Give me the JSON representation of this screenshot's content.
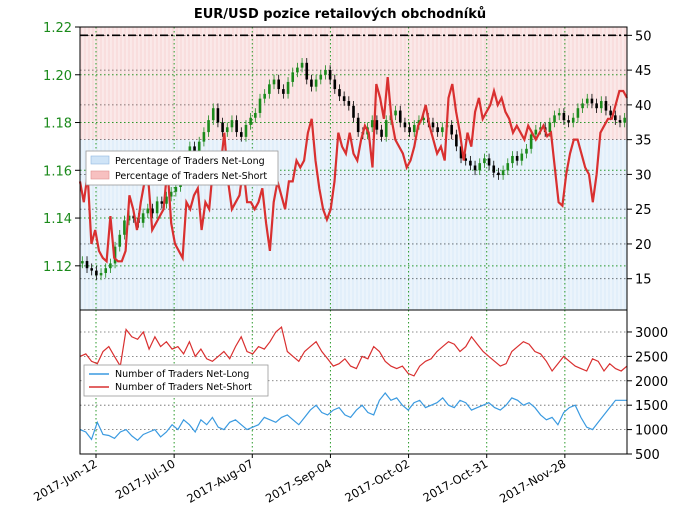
{
  "chart_data": [
    {
      "type": "line",
      "title": "EUR/USD pozice retailových obchodníků",
      "price_axis": {
        "ticks": [
          "1.12",
          "1.14",
          "1.16",
          "1.18",
          "1.20",
          "1.22"
        ],
        "color": "#1b8a1b"
      },
      "pct_axis": {
        "ticks": [
          "15",
          "20",
          "25",
          "30",
          "35",
          "40",
          "45",
          "50"
        ]
      },
      "x_ticks": [
        "2017-Jun-12",
        "2017-Jul-10",
        "2017-Aug-07",
        "2017-Sep-04",
        "2017-Oct-02",
        "2017-Oct-31",
        "2017-Nov-28"
      ],
      "legend": [
        "Percentage of Traders Net-Long",
        "Percentage of Traders Net-Short"
      ],
      "colors": {
        "net_long": "#cfe4f7",
        "net_short": "#f7d0d0",
        "line": "#d93030",
        "candle_up": "#1b8a1b",
        "candle_down": "#000000"
      },
      "series": [
        {
          "name": "Percentage of Traders Net-Short",
          "values": [
            29,
            26,
            30,
            20,
            22,
            19,
            18,
            17.5,
            24,
            18,
            17.5,
            17.5,
            19,
            27,
            25,
            22,
            26,
            29,
            29,
            22,
            23,
            24,
            25,
            31,
            23,
            20,
            19,
            18,
            26,
            25,
            27,
            28,
            22,
            26,
            25,
            31,
            31,
            31,
            36,
            29,
            25,
            26,
            27,
            31,
            26,
            26,
            25,
            26,
            28,
            23,
            19,
            26,
            29,
            27,
            25,
            29,
            29,
            32,
            31,
            32,
            36,
            38,
            32,
            28,
            25,
            23.5,
            25,
            29,
            36,
            34,
            33,
            36,
            33,
            32,
            35,
            37,
            36,
            31,
            43,
            41,
            38,
            44,
            38,
            35,
            34,
            33,
            31,
            32,
            34,
            37,
            38,
            40,
            37,
            35,
            33,
            34,
            32,
            41,
            43,
            39,
            36,
            32,
            36,
            34,
            39,
            41,
            38,
            39,
            40,
            42,
            40,
            41,
            39,
            38,
            36,
            37,
            36,
            35,
            37,
            36,
            35,
            36,
            37,
            35.5,
            36,
            31,
            26,
            25.5,
            30,
            33,
            35,
            35,
            33,
            31,
            30,
            26,
            30,
            36,
            37,
            38,
            38,
            40,
            42,
            42,
            41
          ]
        },
        {
          "name": "EUR/USD",
          "values": [
            1.122,
            1.119,
            1.118,
            1.116,
            1.117,
            1.119,
            1.121,
            1.128,
            1.133,
            1.139,
            1.141,
            1.14,
            1.138,
            1.142,
            1.144,
            1.142,
            1.147,
            1.146,
            1.149,
            1.151,
            1.153,
            1.157,
            1.165,
            1.17,
            1.168,
            1.172,
            1.176,
            1.181,
            1.186,
            1.18,
            1.176,
            1.178,
            1.181,
            1.176,
            1.174,
            1.179,
            1.182,
            1.184,
            1.19,
            1.192,
            1.196,
            1.198,
            1.194,
            1.192,
            1.197,
            1.201,
            1.203,
            1.205,
            1.198,
            1.195,
            1.198,
            1.2,
            1.202,
            1.198,
            1.194,
            1.191,
            1.189,
            1.187,
            1.182,
            1.176,
            1.175,
            1.178,
            1.181,
            1.177,
            1.174,
            1.181,
            1.183,
            1.185,
            1.18,
            1.178,
            1.176,
            1.179,
            1.181,
            1.182,
            1.18,
            1.178,
            1.176,
            1.178,
            1.179,
            1.175,
            1.17,
            1.165,
            1.164,
            1.162,
            1.16,
            1.163,
            1.165,
            1.162,
            1.159,
            1.158,
            1.16,
            1.163,
            1.166,
            1.164,
            1.167,
            1.169,
            1.175,
            1.177,
            1.178,
            1.176,
            1.18,
            1.183,
            1.184,
            1.181,
            1.18,
            1.182,
            1.186,
            1.188,
            1.19,
            1.188,
            1.186,
            1.189,
            1.185,
            1.183,
            1.181,
            1.18,
            1.182
          ]
        },
        {
          "name": "Number of Traders Net-Long",
          "values": [
            1000,
            950,
            800,
            1150,
            900,
            880,
            820,
            950,
            1000,
            870,
            780,
            900,
            950,
            1000,
            850,
            950,
            1100,
            1000,
            1200,
            1100,
            950,
            1200,
            1100,
            1250,
            1050,
            1000,
            1150,
            1200,
            1100,
            1000,
            1050,
            1100,
            1250,
            1200,
            1150,
            1250,
            1300,
            1200,
            1100,
            1250,
            1400,
            1500,
            1350,
            1300,
            1400,
            1450,
            1300,
            1250,
            1400,
            1500,
            1350,
            1300,
            1600,
            1750,
            1600,
            1650,
            1500,
            1400,
            1550,
            1600,
            1450,
            1500,
            1550,
            1650,
            1500,
            1450,
            1600,
            1550,
            1400,
            1450,
            1500,
            1550,
            1450,
            1400,
            1500,
            1650,
            1600,
            1500,
            1550,
            1450,
            1300,
            1200,
            1250,
            1100,
            1350,
            1450,
            1500,
            1250,
            1050,
            1000,
            1150,
            1300,
            1450,
            1600,
            1600,
            1600
          ]
        },
        {
          "name": "Number of Traders Net-Short",
          "values": [
            2500,
            2550,
            2400,
            2350,
            2600,
            2700,
            2500,
            2300,
            3050,
            2900,
            2850,
            3000,
            2650,
            2900,
            2700,
            2800,
            2650,
            2700,
            2550,
            2800,
            2500,
            2650,
            2450,
            2400,
            2500,
            2600,
            2450,
            2700,
            2900,
            2600,
            2550,
            2700,
            2650,
            2800,
            3000,
            3100,
            2600,
            2500,
            2400,
            2600,
            2700,
            2800,
            2600,
            2450,
            2300,
            2350,
            2450,
            2300,
            2250,
            2500,
            2450,
            2700,
            2600,
            2400,
            2300,
            2250,
            2300,
            2150,
            2100,
            2300,
            2400,
            2450,
            2600,
            2700,
            2800,
            2750,
            2600,
            2700,
            2900,
            2750,
            2600,
            2500,
            2400,
            2300,
            2350,
            2600,
            2700,
            2800,
            2750,
            2600,
            2550,
            2400,
            2200,
            2350,
            2500,
            2400,
            2300,
            2250,
            2200,
            2450,
            2400,
            2200,
            2350,
            2250,
            2200,
            2300
          ]
        }
      ]
    },
    {
      "type": "line",
      "count_axis": {
        "ticks": [
          "500",
          "1000",
          "1500",
          "2000",
          "2500",
          "3000"
        ]
      },
      "legend": [
        "Number of Traders Net-Long",
        "Number of Traders Net-Short"
      ],
      "colors": {
        "net_long": "#3a9ae0",
        "net_short": "#d93030"
      }
    }
  ]
}
